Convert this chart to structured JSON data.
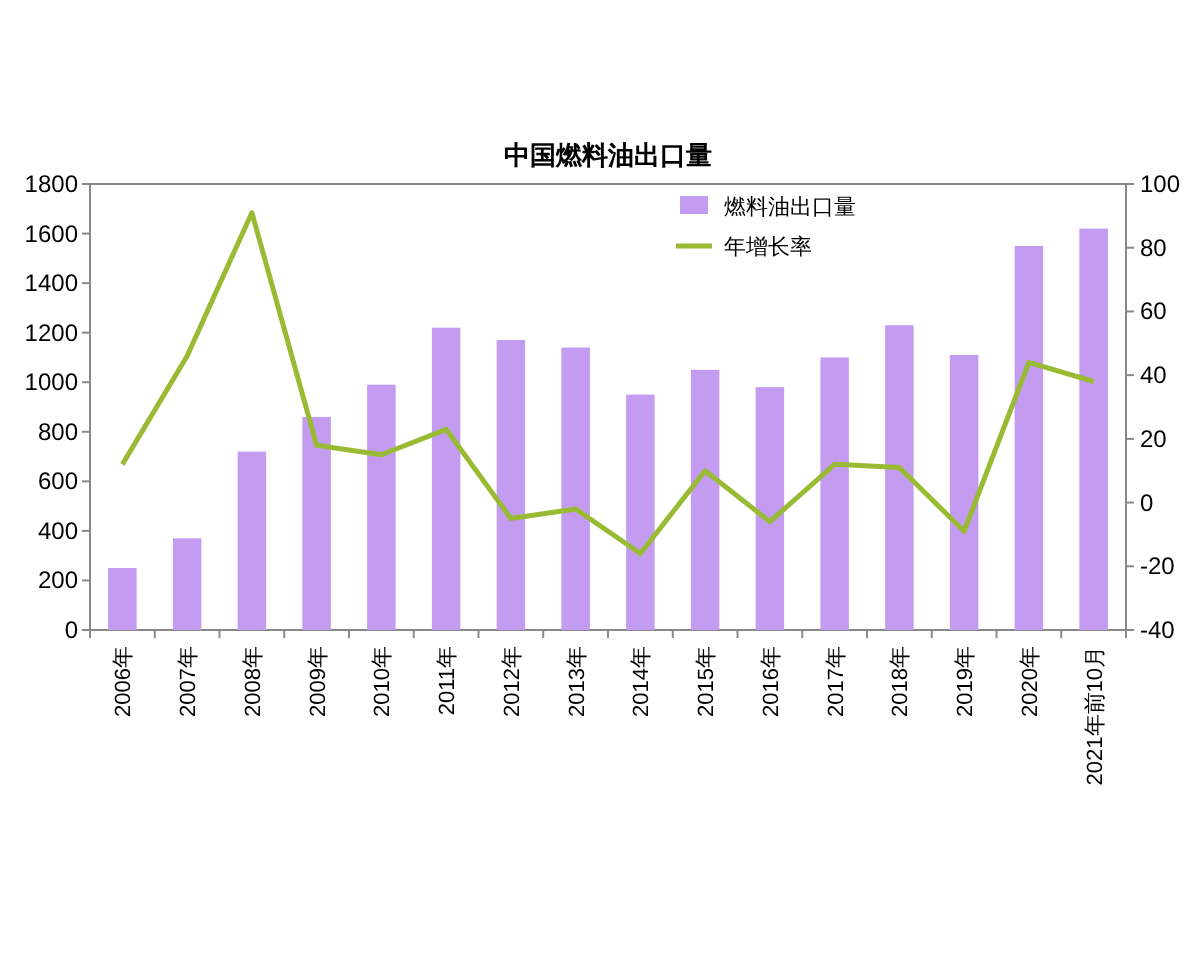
{
  "chart_data": {
    "type": "bar",
    "title": "中国燃料油出口量",
    "categories": [
      "2006年",
      "2007年",
      "2008年",
      "2009年",
      "2010年",
      "2011年",
      "2012年",
      "2013年",
      "2014年",
      "2015年",
      "2016年",
      "2017年",
      "2018年",
      "2019年",
      "2020年",
      "2021年前10月"
    ],
    "series": [
      {
        "name": "燃料油出口量",
        "color": "#c39bf0",
        "values": [
          250,
          370,
          720,
          860,
          990,
          1220,
          1170,
          1140,
          950,
          1050,
          980,
          1100,
          1230,
          1110,
          1550,
          1620
        ]
      },
      {
        "name": "年增长率",
        "type": "line",
        "axis": "y2",
        "color": "#99bb33",
        "values": [
          12,
          46,
          91,
          18,
          15,
          23,
          -5,
          -2,
          -16,
          10,
          -6,
          12,
          11,
          -9,
          44,
          38
        ]
      }
    ],
    "ylim": [
      0,
      1800
    ],
    "yticks": [
      0,
      200,
      400,
      600,
      800,
      1000,
      1200,
      1400,
      1600,
      1800
    ],
    "y2lim": [
      -40,
      100
    ],
    "y2ticks": [
      -40,
      -20,
      0,
      20,
      40,
      60,
      80,
      100
    ],
    "legend": "top right",
    "grid": false,
    "marker": "none",
    "line_style": "solid"
  }
}
